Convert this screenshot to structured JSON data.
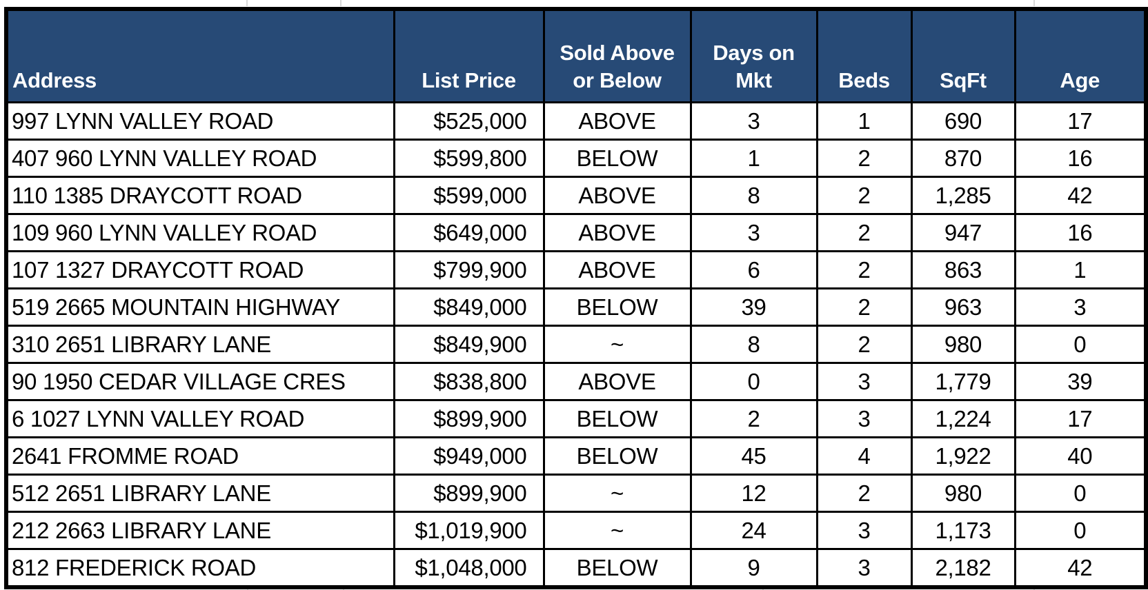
{
  "table": {
    "columns": [
      {
        "key": "address",
        "label": "Address"
      },
      {
        "key": "list_price",
        "label": "List Price"
      },
      {
        "key": "sold_above_or_below",
        "label": "Sold Above\nor Below"
      },
      {
        "key": "days_on_mkt",
        "label": "Days on\nMkt"
      },
      {
        "key": "beds",
        "label": "Beds"
      },
      {
        "key": "sqft",
        "label": "SqFt"
      },
      {
        "key": "age",
        "label": "Age"
      }
    ],
    "rows": [
      [
        "997 LYNN VALLEY ROAD",
        "$525,000",
        "ABOVE",
        "3",
        "1",
        "690",
        "17"
      ],
      [
        "407 960 LYNN VALLEY ROAD",
        "$599,800",
        "BELOW",
        "1",
        "2",
        "870",
        "16"
      ],
      [
        "110 1385 DRAYCOTT ROAD",
        "$599,000",
        "ABOVE",
        "8",
        "2",
        "1,285",
        "42"
      ],
      [
        "109 960 LYNN VALLEY ROAD",
        "$649,000",
        "ABOVE",
        "3",
        "2",
        "947",
        "16"
      ],
      [
        "107 1327 DRAYCOTT ROAD",
        "$799,900",
        "ABOVE",
        "6",
        "2",
        "863",
        "1"
      ],
      [
        "519 2665 MOUNTAIN HIGHWAY",
        "$849,000",
        "BELOW",
        "39",
        "2",
        "963",
        "3"
      ],
      [
        "310 2651 LIBRARY LANE",
        "$849,900",
        "~",
        "8",
        "2",
        "980",
        "0"
      ],
      [
        "90 1950 CEDAR VILLAGE CRES",
        "$838,800",
        "ABOVE",
        "0",
        "3",
        "1,779",
        "39"
      ],
      [
        "6 1027 LYNN VALLEY ROAD",
        "$899,900",
        "BELOW",
        "2",
        "3",
        "1,224",
        "17"
      ],
      [
        "2641 FROMME ROAD",
        "$949,000",
        "BELOW",
        "45",
        "4",
        "1,922",
        "40"
      ],
      [
        "512 2651 LIBRARY LANE",
        "$899,900",
        "~",
        "12",
        "2",
        "980",
        "0"
      ],
      [
        "212 2663 LIBRARY LANE",
        "$1,019,900",
        "~",
        "24",
        "3",
        "1,173",
        "0"
      ],
      [
        "812 FREDERICK ROAD",
        "$1,048,000",
        "BELOW",
        "9",
        "3",
        "2,182",
        "42"
      ]
    ]
  },
  "colors": {
    "header_bg": "#274A76",
    "header_text": "#FFFFFF",
    "grid_border": "#000000",
    "body_bg": "#FFFFFF",
    "body_text": "#000000",
    "faint_gridline": "#D8D8D8"
  }
}
